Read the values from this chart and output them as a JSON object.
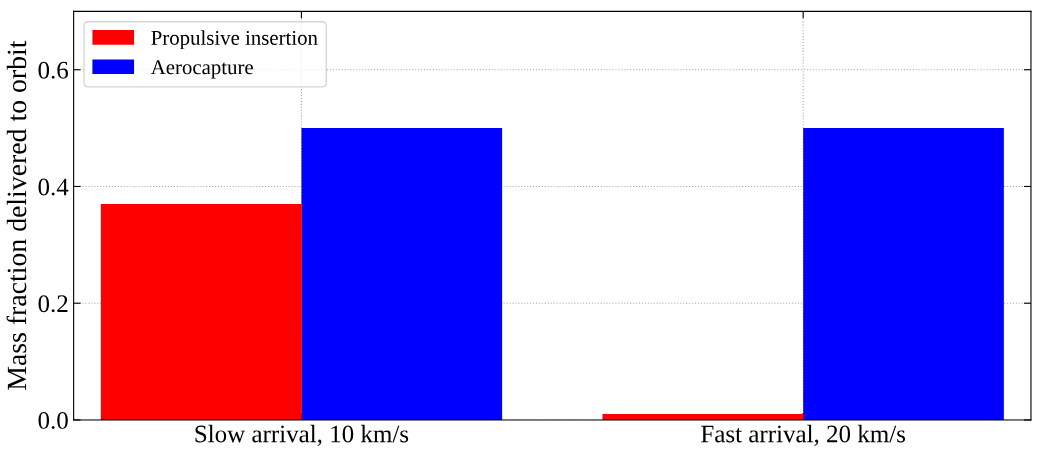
{
  "chart_data": {
    "type": "bar",
    "ylabel": "Mass fraction delivered to orbit",
    "categories": [
      "Slow arrival, 10 km/s",
      "Fast arrival, 20 km/s"
    ],
    "series": [
      {
        "name": "Propulsive insertion",
        "color": "#ff0000",
        "values": [
          0.37,
          0.01
        ]
      },
      {
        "name": "Aerocapture",
        "color": "#0000ff",
        "values": [
          0.5,
          0.5
        ]
      }
    ],
    "ylim": [
      0,
      0.7
    ],
    "yticks": [
      {
        "value": 0,
        "label": "0.0"
      },
      {
        "value": 0.2,
        "label": "0.2"
      },
      {
        "value": 0.4,
        "label": "0.4"
      },
      {
        "value": 0.6,
        "label": "0.6"
      }
    ],
    "grid": true,
    "legend": "top left"
  }
}
